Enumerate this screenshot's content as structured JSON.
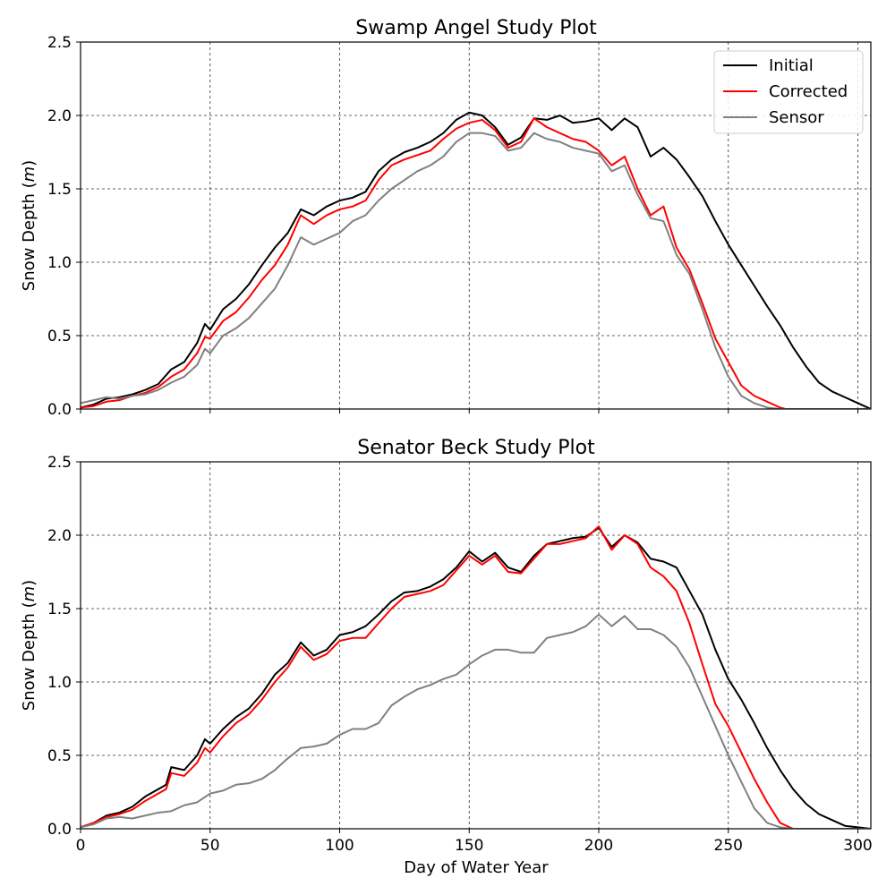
{
  "chart_data": [
    {
      "type": "line",
      "title": "Swamp Angel Study Plot",
      "xlabel": "",
      "ylabel": "Snow Depth (m)",
      "ylabel_prefix": "Snow Depth (",
      "ylabel_unit": "m",
      "ylabel_suffix": ")",
      "xlim": [
        0,
        305
      ],
      "ylim": [
        0.0,
        2.5
      ],
      "xticks": [
        0,
        50,
        100,
        150,
        200,
        250,
        300
      ],
      "yticks": [
        "0.0",
        "0.5",
        "1.0",
        "1.5",
        "2.0",
        "2.5"
      ],
      "show_xticklabels": false,
      "grid": true,
      "legend": "top-right",
      "series": [
        {
          "name": "Initial",
          "color": "#000000",
          "x": [
            0,
            5,
            10,
            15,
            20,
            25,
            30,
            35,
            40,
            45,
            48,
            50,
            55,
            60,
            65,
            70,
            75,
            80,
            85,
            90,
            95,
            100,
            105,
            110,
            115,
            120,
            125,
            130,
            135,
            140,
            145,
            150,
            155,
            160,
            165,
            170,
            175,
            180,
            185,
            190,
            195,
            200,
            205,
            210,
            215,
            220,
            225,
            230,
            235,
            240,
            245,
            250,
            255,
            260,
            265,
            270,
            275,
            280,
            285,
            290,
            295,
            300,
            305
          ],
          "y": [
            0.01,
            0.03,
            0.07,
            0.08,
            0.1,
            0.13,
            0.17,
            0.27,
            0.32,
            0.45,
            0.58,
            0.54,
            0.68,
            0.75,
            0.85,
            0.98,
            1.1,
            1.2,
            1.36,
            1.32,
            1.38,
            1.42,
            1.44,
            1.48,
            1.62,
            1.7,
            1.75,
            1.78,
            1.82,
            1.88,
            1.97,
            2.02,
            2.0,
            1.92,
            1.8,
            1.85,
            1.98,
            1.97,
            2.0,
            1.95,
            1.96,
            1.98,
            1.9,
            1.98,
            1.92,
            1.72,
            1.78,
            1.7,
            1.58,
            1.45,
            1.28,
            1.12,
            0.98,
            0.84,
            0.7,
            0.57,
            0.42,
            0.29,
            0.18,
            0.12,
            0.08,
            0.04,
            0.0
          ]
        },
        {
          "name": "Corrected",
          "color": "#ff0000",
          "x": [
            0,
            5,
            10,
            15,
            20,
            25,
            30,
            35,
            40,
            45,
            48,
            50,
            55,
            60,
            65,
            70,
            75,
            80,
            85,
            90,
            95,
            100,
            105,
            110,
            115,
            120,
            125,
            130,
            135,
            140,
            145,
            150,
            155,
            160,
            165,
            170,
            175,
            180,
            185,
            190,
            195,
            200,
            205,
            210,
            215,
            220,
            225,
            230,
            235,
            240,
            245,
            250,
            255,
            260,
            265,
            270,
            272,
            280,
            290,
            300,
            305
          ],
          "y": [
            0.01,
            0.02,
            0.05,
            0.06,
            0.09,
            0.11,
            0.15,
            0.22,
            0.27,
            0.38,
            0.49,
            0.48,
            0.6,
            0.66,
            0.76,
            0.88,
            0.98,
            1.12,
            1.32,
            1.26,
            1.32,
            1.36,
            1.38,
            1.42,
            1.56,
            1.66,
            1.7,
            1.73,
            1.76,
            1.84,
            1.91,
            1.95,
            1.97,
            1.9,
            1.78,
            1.82,
            1.98,
            1.92,
            1.88,
            1.84,
            1.82,
            1.76,
            1.66,
            1.72,
            1.5,
            1.32,
            1.38,
            1.1,
            0.95,
            0.72,
            0.48,
            0.32,
            0.16,
            0.09,
            0.05,
            0.01,
            0.0,
            0.0,
            0.0,
            0.0,
            0.0
          ]
        },
        {
          "name": "Sensor",
          "color": "#808080",
          "x": [
            0,
            5,
            10,
            15,
            20,
            25,
            30,
            35,
            40,
            45,
            48,
            50,
            55,
            60,
            65,
            70,
            75,
            80,
            85,
            90,
            95,
            100,
            105,
            110,
            115,
            120,
            125,
            130,
            135,
            140,
            145,
            150,
            155,
            160,
            165,
            170,
            175,
            180,
            185,
            190,
            195,
            200,
            205,
            210,
            215,
            220,
            225,
            230,
            235,
            240,
            245,
            250,
            255,
            260,
            265,
            270,
            275,
            280,
            290,
            300,
            305
          ],
          "y": [
            0.04,
            0.06,
            0.08,
            0.07,
            0.09,
            0.1,
            0.13,
            0.18,
            0.22,
            0.3,
            0.41,
            0.38,
            0.5,
            0.55,
            0.62,
            0.72,
            0.82,
            0.98,
            1.17,
            1.12,
            1.16,
            1.2,
            1.28,
            1.32,
            1.42,
            1.5,
            1.56,
            1.62,
            1.66,
            1.72,
            1.82,
            1.88,
            1.88,
            1.86,
            1.76,
            1.78,
            1.88,
            1.84,
            1.82,
            1.78,
            1.76,
            1.74,
            1.62,
            1.66,
            1.46,
            1.3,
            1.28,
            1.05,
            0.92,
            0.68,
            0.42,
            0.22,
            0.09,
            0.04,
            0.01,
            0.0,
            0.0,
            0.0,
            0.0,
            0.0,
            0.0
          ]
        }
      ]
    },
    {
      "type": "line",
      "title": "Senator Beck Study Plot",
      "xlabel": "Day of Water Year",
      "ylabel": "Snow Depth (m)",
      "ylabel_prefix": "Snow Depth (",
      "ylabel_unit": "m",
      "ylabel_suffix": ")",
      "xlim": [
        0,
        305
      ],
      "ylim": [
        0.0,
        2.5
      ],
      "xticks": [
        0,
        50,
        100,
        150,
        200,
        250,
        300
      ],
      "yticks": [
        "0.0",
        "0.5",
        "1.0",
        "1.5",
        "2.0",
        "2.5"
      ],
      "show_xticklabels": true,
      "grid": true,
      "series": [
        {
          "name": "Initial",
          "color": "#000000",
          "x": [
            0,
            5,
            10,
            15,
            20,
            25,
            30,
            33,
            35,
            40,
            45,
            48,
            50,
            55,
            60,
            65,
            70,
            75,
            80,
            85,
            90,
            95,
            100,
            105,
            110,
            115,
            120,
            125,
            130,
            135,
            140,
            145,
            150,
            155,
            160,
            165,
            170,
            175,
            180,
            185,
            190,
            195,
            200,
            205,
            210,
            215,
            220,
            225,
            230,
            235,
            240,
            245,
            250,
            255,
            260,
            265,
            270,
            275,
            280,
            285,
            290,
            295,
            300,
            305
          ],
          "y": [
            0.01,
            0.04,
            0.09,
            0.11,
            0.15,
            0.22,
            0.27,
            0.3,
            0.42,
            0.4,
            0.5,
            0.61,
            0.58,
            0.68,
            0.76,
            0.82,
            0.92,
            1.05,
            1.13,
            1.27,
            1.18,
            1.22,
            1.32,
            1.34,
            1.38,
            1.46,
            1.55,
            1.61,
            1.62,
            1.65,
            1.7,
            1.78,
            1.89,
            1.82,
            1.88,
            1.78,
            1.75,
            1.86,
            1.94,
            1.96,
            1.98,
            1.99,
            2.05,
            1.92,
            2.0,
            1.95,
            1.84,
            1.82,
            1.78,
            1.62,
            1.46,
            1.22,
            1.02,
            0.88,
            0.72,
            0.55,
            0.4,
            0.27,
            0.17,
            0.1,
            0.06,
            0.02,
            0.01,
            0.0
          ]
        },
        {
          "name": "Corrected",
          "color": "#ff0000",
          "x": [
            0,
            5,
            10,
            15,
            20,
            25,
            30,
            33,
            35,
            40,
            45,
            48,
            50,
            55,
            60,
            65,
            70,
            75,
            80,
            85,
            90,
            95,
            100,
            105,
            110,
            115,
            120,
            125,
            130,
            135,
            140,
            145,
            150,
            155,
            160,
            165,
            170,
            175,
            180,
            185,
            190,
            195,
            200,
            205,
            210,
            215,
            220,
            225,
            230,
            235,
            240,
            245,
            250,
            255,
            260,
            265,
            270,
            275,
            280,
            290,
            300,
            305
          ],
          "y": [
            0.01,
            0.04,
            0.08,
            0.1,
            0.13,
            0.19,
            0.24,
            0.27,
            0.38,
            0.36,
            0.45,
            0.55,
            0.52,
            0.63,
            0.72,
            0.78,
            0.88,
            1.0,
            1.1,
            1.24,
            1.15,
            1.19,
            1.28,
            1.3,
            1.3,
            1.4,
            1.5,
            1.58,
            1.6,
            1.62,
            1.66,
            1.76,
            1.86,
            1.8,
            1.86,
            1.75,
            1.74,
            1.84,
            1.94,
            1.94,
            1.96,
            1.98,
            2.06,
            1.9,
            2.0,
            1.94,
            1.78,
            1.72,
            1.62,
            1.4,
            1.12,
            0.85,
            0.7,
            0.52,
            0.34,
            0.18,
            0.04,
            0.0,
            0.0,
            0.0,
            0.0,
            0.0
          ]
        },
        {
          "name": "Sensor",
          "color": "#808080",
          "x": [
            0,
            5,
            10,
            15,
            20,
            25,
            30,
            35,
            40,
            45,
            50,
            55,
            60,
            65,
            70,
            75,
            80,
            85,
            90,
            95,
            100,
            105,
            110,
            115,
            120,
            125,
            130,
            135,
            140,
            145,
            150,
            155,
            160,
            165,
            170,
            175,
            180,
            185,
            190,
            195,
            200,
            205,
            210,
            215,
            220,
            225,
            230,
            235,
            240,
            245,
            250,
            255,
            260,
            265,
            270,
            275,
            280,
            290,
            300,
            305
          ],
          "y": [
            0.01,
            0.03,
            0.07,
            0.08,
            0.07,
            0.09,
            0.11,
            0.12,
            0.16,
            0.18,
            0.24,
            0.26,
            0.3,
            0.31,
            0.34,
            0.4,
            0.48,
            0.55,
            0.56,
            0.58,
            0.64,
            0.68,
            0.68,
            0.72,
            0.84,
            0.9,
            0.95,
            0.98,
            1.02,
            1.05,
            1.12,
            1.18,
            1.22,
            1.22,
            1.2,
            1.2,
            1.3,
            1.32,
            1.34,
            1.38,
            1.46,
            1.38,
            1.45,
            1.36,
            1.36,
            1.32,
            1.24,
            1.1,
            0.9,
            0.7,
            0.5,
            0.32,
            0.14,
            0.04,
            0.01,
            0.0,
            0.0,
            0.0,
            0.0,
            0.0
          ]
        }
      ]
    }
  ]
}
